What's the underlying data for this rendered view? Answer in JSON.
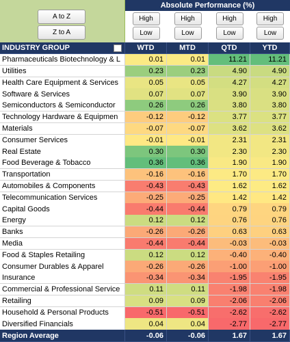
{
  "sort_buttons": [
    "A to Z",
    "Z to A"
  ],
  "header": {
    "title": "Absolute Performance (%)",
    "buttons": [
      [
        "High",
        "Low"
      ],
      [
        "High",
        "Low"
      ],
      [
        "High",
        "Low"
      ],
      [
        "High",
        "Low"
      ]
    ]
  },
  "table": {
    "columns": [
      "INDUSTRY GROUP",
      "WTD",
      "MTD",
      "QTD",
      "YTD"
    ],
    "rows": [
      [
        "Pharmaceuticals Biotechnology & L",
        "0.01",
        "0.01",
        "11.21",
        "11.21"
      ],
      [
        "Utilities",
        "0.23",
        "0.23",
        "4.90",
        "4.90"
      ],
      [
        "Health Care Equipment & Services",
        "0.05",
        "0.05",
        "4.27",
        "4.27"
      ],
      [
        "Software & Services",
        "0.07",
        "0.07",
        "3.90",
        "3.90"
      ],
      [
        "Semiconductors & Semiconductor",
        "0.26",
        "0.26",
        "3.80",
        "3.80"
      ],
      [
        "Technology Hardware & Equipmen",
        "-0.12",
        "-0.12",
        "3.77",
        "3.77"
      ],
      [
        "Materials",
        "-0.07",
        "-0.07",
        "3.62",
        "3.62"
      ],
      [
        "Consumer Services",
        "-0.01",
        "-0.01",
        "2.31",
        "2.31"
      ],
      [
        "Real Estate",
        "0.30",
        "0.30",
        "2.30",
        "2.30"
      ],
      [
        "Food Beverage & Tobacco",
        "0.36",
        "0.36",
        "1.90",
        "1.90"
      ],
      [
        "Transportation",
        "-0.16",
        "-0.16",
        "1.70",
        "1.70"
      ],
      [
        "Automobiles & Components",
        "-0.43",
        "-0.43",
        "1.62",
        "1.62"
      ],
      [
        "Telecommunication Services",
        "-0.25",
        "-0.25",
        "1.42",
        "1.42"
      ],
      [
        "Capital Goods",
        "-0.44",
        "-0.44",
        "0.79",
        "0.79"
      ],
      [
        "Energy",
        "0.12",
        "0.12",
        "0.76",
        "0.76"
      ],
      [
        "Banks",
        "-0.26",
        "-0.26",
        "0.63",
        "0.63"
      ],
      [
        "Media",
        "-0.44",
        "-0.44",
        "-0.03",
        "-0.03"
      ],
      [
        "Food & Staples Retailing",
        "0.12",
        "0.12",
        "-0.40",
        "-0.40"
      ],
      [
        "Consumer Durables & Apparel",
        "-0.26",
        "-0.26",
        "-1.00",
        "-1.00"
      ],
      [
        "Insurance",
        "-0.34",
        "-0.34",
        "-1.95",
        "-1.95"
      ],
      [
        "Commercial & Professional Service",
        "0.11",
        "0.11",
        "-1.98",
        "-1.98"
      ],
      [
        "Retailing",
        "0.09",
        "0.09",
        "-2.06",
        "-2.06"
      ],
      [
        "Household & Personal Products",
        "-0.51",
        "-0.51",
        "-2.62",
        "-2.62"
      ],
      [
        "Diversified Financials",
        "0.04",
        "0.04",
        "-2.77",
        "-2.77"
      ]
    ],
    "footer": [
      "Region Average",
      "-0.06",
      "-0.06",
      "1.67",
      "1.67"
    ]
  }
}
